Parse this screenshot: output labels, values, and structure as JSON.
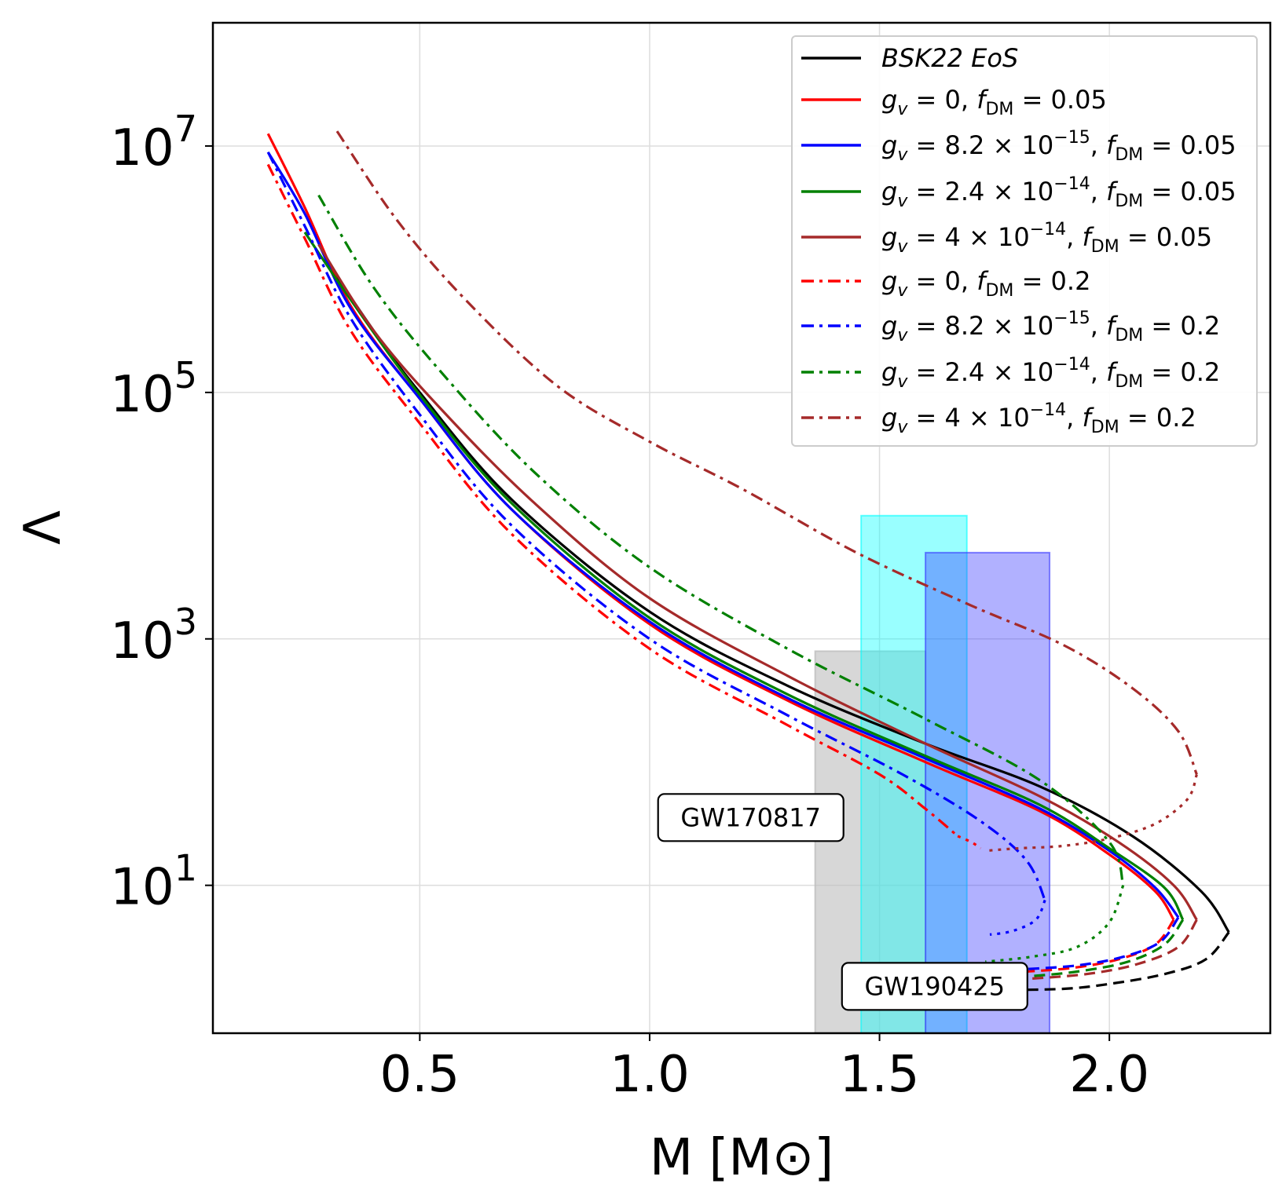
{
  "chart_data": {
    "type": "line",
    "title": "",
    "xlabel": "M [M⊙]",
    "ylabel": "Λ",
    "xlim": [
      0.05,
      2.35
    ],
    "ylim_log10": [
      -0.2,
      8.0
    ],
    "yscale": "log",
    "grid": true,
    "legend_position": "top-right",
    "x_ticks": [
      {
        "value": 0.5,
        "label": "0.5"
      },
      {
        "value": 1.0,
        "label": "1.0"
      },
      {
        "value": 1.5,
        "label": "1.5"
      },
      {
        "value": 2.0,
        "label": "2.0"
      }
    ],
    "y_ticks": [
      {
        "log10": 1,
        "base": "10",
        "exp": "1"
      },
      {
        "log10": 3,
        "base": "10",
        "exp": "3"
      },
      {
        "log10": 5,
        "base": "10",
        "exp": "5"
      },
      {
        "log10": 7,
        "base": "10",
        "exp": "7"
      }
    ],
    "bands": [
      {
        "name": "gw170817-band",
        "x": [
          1.36,
          1.6
        ],
        "y_top_log10": 2.9,
        "color": "#bdbdbd",
        "opacity": 0.6
      },
      {
        "name": "cyan-band",
        "x": [
          1.46,
          1.69
        ],
        "y_top_log10": 4.0,
        "color": "#00ffff",
        "opacity": 0.4
      },
      {
        "name": "blue-band",
        "x": [
          1.6,
          1.87
        ],
        "y_top_log10": 3.7,
        "color": "#3333ff",
        "opacity": 0.38
      }
    ],
    "annotations": [
      {
        "name": "gw170817-label",
        "text": "GW170817",
        "x": 1.22,
        "y_log10": 1.55
      },
      {
        "name": "gw190425-label",
        "text": "GW190425",
        "x": 1.62,
        "y_log10": 0.18
      }
    ],
    "series": [
      {
        "name": "BSK22 EoS",
        "color": "#000000",
        "style": "solid",
        "width": 3.2,
        "x": [
          0.3,
          0.4,
          0.5,
          0.7,
          1.0,
          1.3,
          1.6,
          1.85,
          2.05,
          2.2,
          2.26
        ],
        "y": [
          6.05,
          5.5,
          5.0,
          4.13,
          3.22,
          2.62,
          2.15,
          1.8,
          1.4,
          0.95,
          0.62
        ],
        "tail_x": [
          2.26,
          2.21,
          2.12,
          2.0,
          1.9,
          1.76
        ],
        "tail_y": [
          0.62,
          0.4,
          0.28,
          0.2,
          0.16,
          0.15
        ],
        "tail_style": "dashed"
      },
      {
        "name": "gv=0, fDM=0.05",
        "color": "#ff0000",
        "style": "solid",
        "width": 3.2,
        "x": [
          0.17,
          0.25,
          0.35,
          0.5,
          0.7,
          1.0,
          1.3,
          1.6,
          1.85,
          2.0,
          2.1,
          2.14
        ],
        "y": [
          7.1,
          6.5,
          5.7,
          4.95,
          4.05,
          3.12,
          2.5,
          2.0,
          1.6,
          1.25,
          0.95,
          0.72
        ],
        "tail_x": [
          2.14,
          2.1,
          2.02,
          1.92,
          1.82
        ],
        "tail_y": [
          0.72,
          0.52,
          0.4,
          0.33,
          0.3
        ],
        "tail_style": "dashed"
      },
      {
        "name": "gv=8.2e-15, fDM=0.05",
        "color": "#0000ff",
        "style": "solid",
        "width": 3.2,
        "x": [
          0.17,
          0.25,
          0.35,
          0.5,
          0.7,
          1.0,
          1.3,
          1.6,
          1.85,
          2.0,
          2.1,
          2.15
        ],
        "y": [
          6.95,
          6.45,
          5.68,
          4.95,
          4.05,
          3.14,
          2.52,
          2.03,
          1.62,
          1.28,
          0.98,
          0.74
        ],
        "tail_x": [
          2.15,
          2.11,
          2.03,
          1.93,
          1.82
        ],
        "tail_y": [
          0.74,
          0.54,
          0.42,
          0.35,
          0.32
        ],
        "tail_style": "dashed"
      },
      {
        "name": "gv=2.4e-14, fDM=0.05",
        "color": "#008000",
        "style": "solid",
        "width": 3.2,
        "x": [
          0.25,
          0.35,
          0.5,
          0.7,
          1.0,
          1.3,
          1.6,
          1.85,
          2.0,
          2.12,
          2.16
        ],
        "y": [
          6.3,
          5.75,
          4.98,
          4.1,
          3.17,
          2.55,
          2.05,
          1.65,
          1.3,
          0.98,
          0.72
        ],
        "tail_x": [
          2.16,
          2.12,
          2.04,
          1.93,
          1.82
        ],
        "tail_y": [
          0.72,
          0.52,
          0.38,
          0.3,
          0.26
        ],
        "tail_style": "dashed"
      },
      {
        "name": "gv=4e-14, fDM=0.05",
        "color": "#a52a2a",
        "style": "solid",
        "width": 3.2,
        "x": [
          0.28,
          0.4,
          0.55,
          0.75,
          1.0,
          1.3,
          1.6,
          1.85,
          2.02,
          2.14,
          2.19
        ],
        "y": [
          6.2,
          5.5,
          4.85,
          4.1,
          3.33,
          2.7,
          2.15,
          1.72,
          1.35,
          1.0,
          0.72
        ],
        "tail_x": [
          2.19,
          2.15,
          2.06,
          1.95,
          1.82
        ],
        "tail_y": [
          0.72,
          0.5,
          0.36,
          0.28,
          0.24
        ],
        "tail_style": "dashed"
      },
      {
        "name": "gv=0, fDM=0.2",
        "color": "#ff0000",
        "style": "dashdot",
        "width": 3.2,
        "x": [
          0.17,
          0.25,
          0.35,
          0.5,
          0.7,
          1.0,
          1.3,
          1.5,
          1.6,
          1.67
        ],
        "y": [
          6.85,
          6.25,
          5.5,
          4.75,
          3.85,
          2.92,
          2.3,
          1.9,
          1.62,
          1.4
        ],
        "tail_x": [
          1.67,
          1.7,
          1.72
        ],
        "tail_y": [
          1.4,
          1.35,
          1.3
        ],
        "tail_style": "dotted"
      },
      {
        "name": "gv=8.2e-15, fDM=0.2",
        "color": "#0000ff",
        "style": "dashdot",
        "width": 3.2,
        "x": [
          0.17,
          0.25,
          0.35,
          0.5,
          0.7,
          1.0,
          1.3,
          1.55,
          1.72,
          1.82,
          1.86
        ],
        "y": [
          6.95,
          6.35,
          5.6,
          4.82,
          3.92,
          3.0,
          2.38,
          1.9,
          1.52,
          1.2,
          0.88
        ],
        "tail_x": [
          1.86,
          1.84,
          1.79,
          1.74
        ],
        "tail_y": [
          0.88,
          0.72,
          0.63,
          0.6
        ],
        "tail_style": "dotted"
      },
      {
        "name": "gv=2.4e-14, fDM=0.2",
        "color": "#008000",
        "style": "dashdot",
        "width": 3.2,
        "x": [
          0.28,
          0.4,
          0.55,
          0.75,
          1.0,
          1.3,
          1.6,
          1.85,
          2.0,
          2.03
        ],
        "y": [
          6.6,
          5.85,
          5.15,
          4.35,
          3.58,
          2.92,
          2.35,
          1.85,
          1.35,
          1.0
        ],
        "tail_x": [
          2.03,
          2.0,
          1.93,
          1.83,
          1.73
        ],
        "tail_y": [
          1.0,
          0.7,
          0.5,
          0.42,
          0.38
        ],
        "tail_style": "dotted"
      },
      {
        "name": "gv=4e-14, fDM=0.2",
        "color": "#a52a2a",
        "style": "dashdot",
        "width": 3.2,
        "x": [
          0.32,
          0.45,
          0.6,
          0.8,
          1.0,
          1.2,
          1.45,
          1.7,
          1.9,
          2.05,
          2.15,
          2.19
        ],
        "y": [
          7.12,
          6.4,
          5.75,
          5.05,
          4.6,
          4.22,
          3.7,
          3.27,
          2.95,
          2.6,
          2.25,
          1.9
        ],
        "tail_x": [
          2.19,
          2.17,
          2.1,
          2.0,
          1.9,
          1.8,
          1.73
        ],
        "tail_y": [
          1.9,
          1.7,
          1.5,
          1.38,
          1.32,
          1.3,
          1.28
        ],
        "tail_style": "dotted"
      }
    ],
    "legend": [
      {
        "name": "legend-bsk22",
        "series": 0,
        "parts": [
          {
            "t": "BSK22  EoS",
            "i": true
          }
        ]
      },
      {
        "name": "legend-gv0-fdm005",
        "series": 1,
        "parts": [
          {
            "t": "g",
            "i": true
          },
          {
            "t": "v",
            "i": true,
            "sub": true
          },
          {
            "t": " = 0, "
          },
          {
            "t": "f",
            "i": true
          },
          {
            "t": "DM",
            "sub": true
          },
          {
            "t": " = 0.05"
          }
        ]
      },
      {
        "name": "legend-gv8-fdm005",
        "series": 2,
        "parts": [
          {
            "t": "g",
            "i": true
          },
          {
            "t": "v",
            "i": true,
            "sub": true
          },
          {
            "t": " = 8.2 × 10"
          },
          {
            "t": "−15",
            "sup": true
          },
          {
            "t": ", "
          },
          {
            "t": "f",
            "i": true
          },
          {
            "t": "DM",
            "sub": true
          },
          {
            "t": " = 0.05"
          }
        ]
      },
      {
        "name": "legend-gv24-fdm005",
        "series": 3,
        "parts": [
          {
            "t": "g",
            "i": true
          },
          {
            "t": "v",
            "i": true,
            "sub": true
          },
          {
            "t": " = 2.4 × 10"
          },
          {
            "t": "−14",
            "sup": true
          },
          {
            "t": ", "
          },
          {
            "t": "f",
            "i": true
          },
          {
            "t": "DM",
            "sub": true
          },
          {
            "t": " = 0.05"
          }
        ]
      },
      {
        "name": "legend-gv4-fdm005",
        "series": 4,
        "parts": [
          {
            "t": "g",
            "i": true
          },
          {
            "t": "v",
            "i": true,
            "sub": true
          },
          {
            "t": " = 4 × 10"
          },
          {
            "t": "−14",
            "sup": true
          },
          {
            "t": ", "
          },
          {
            "t": "f",
            "i": true
          },
          {
            "t": "DM",
            "sub": true
          },
          {
            "t": " = 0.05"
          }
        ]
      },
      {
        "name": "legend-gv0-fdm02",
        "series": 5,
        "parts": [
          {
            "t": "g",
            "i": true
          },
          {
            "t": "v",
            "i": true,
            "sub": true
          },
          {
            "t": " = 0, "
          },
          {
            "t": "f",
            "i": true
          },
          {
            "t": "DM",
            "sub": true
          },
          {
            "t": " = 0.2"
          }
        ]
      },
      {
        "name": "legend-gv8-fdm02",
        "series": 6,
        "parts": [
          {
            "t": "g",
            "i": true
          },
          {
            "t": "v",
            "i": true,
            "sub": true
          },
          {
            "t": " = 8.2 × 10"
          },
          {
            "t": "−15",
            "sup": true
          },
          {
            "t": ", "
          },
          {
            "t": "f",
            "i": true
          },
          {
            "t": "DM",
            "sub": true
          },
          {
            "t": " = 0.2"
          }
        ]
      },
      {
        "name": "legend-gv24-fdm02",
        "series": 7,
        "parts": [
          {
            "t": "g",
            "i": true
          },
          {
            "t": "v",
            "i": true,
            "sub": true
          },
          {
            "t": " = 2.4 × 10"
          },
          {
            "t": "−14",
            "sup": true
          },
          {
            "t": ", "
          },
          {
            "t": "f",
            "i": true
          },
          {
            "t": "DM",
            "sub": true
          },
          {
            "t": " = 0.2"
          }
        ]
      },
      {
        "name": "legend-gv4-fdm02",
        "series": 8,
        "parts": [
          {
            "t": "g",
            "i": true
          },
          {
            "t": "v",
            "i": true,
            "sub": true
          },
          {
            "t": " = 4 × 10"
          },
          {
            "t": "−14",
            "sup": true
          },
          {
            "t": ", "
          },
          {
            "t": "f",
            "i": true
          },
          {
            "t": "DM",
            "sub": true
          },
          {
            "t": " = 0.2"
          }
        ]
      }
    ]
  }
}
